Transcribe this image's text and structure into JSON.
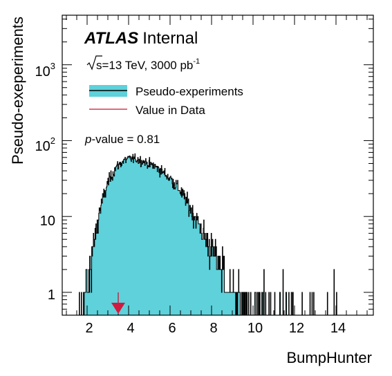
{
  "chart_data": {
    "type": "histogram",
    "title": "",
    "xlabel": "BumpHunter",
    "ylabel": "Pseudo-exeperiments",
    "xlim": [
      0.8,
      15.8
    ],
    "ylim": [
      0.5,
      4500
    ],
    "log_y": true,
    "x_ticks": [
      2,
      4,
      6,
      8,
      10,
      12,
      14
    ],
    "x_tick_labels": [
      "2",
      "4",
      "6",
      "8",
      "10",
      "12",
      "14"
    ],
    "y_ticks": [
      1,
      10,
      100,
      1000
    ],
    "y_tick_labels": [
      {
        "base": "1",
        "exp": ""
      },
      {
        "base": "10",
        "exp": ""
      },
      {
        "base": "10",
        "exp": "2"
      },
      {
        "base": "10",
        "exp": "3"
      }
    ],
    "annotations": {
      "experiment": "ATLAS",
      "status": "Internal",
      "sqrt_s": "s",
      "energy_lumi": "=13 TeV, 3000 pb",
      "lumi_exp": "-1",
      "p_label": "p",
      "p_rest": "-value = 0.81"
    },
    "legend": {
      "placement": "top-left",
      "entries": [
        {
          "label": "Pseudo-experiments",
          "style": "filled-histogram"
        },
        {
          "label": "Value in Data",
          "style": "line"
        }
      ]
    },
    "data_value": 3.5,
    "envelope_x": [
      1.6,
      2.0,
      2.3,
      2.6,
      3.0,
      3.4,
      3.8,
      4.0,
      4.4,
      4.8,
      5.2,
      5.6,
      6.0,
      6.4,
      6.8,
      7.2,
      7.6,
      8.0,
      8.4,
      8.8,
      9.2,
      9.6,
      10.0,
      10.5,
      11.0,
      12.0,
      13.0,
      14.0,
      15.2
    ],
    "envelope_y": [
      0.8,
      1.5,
      4,
      12,
      28,
      45,
      55,
      58,
      57,
      52,
      47,
      40,
      32,
      24,
      16,
      10,
      6,
      3.8,
      2.5,
      1.7,
      1.2,
      0.9,
      0.65,
      0.45,
      0.3,
      0.18,
      0.1,
      0.06,
      0.04
    ],
    "colors": {
      "fill": "#5ed1da",
      "line": "#000000",
      "data_line": "#cc1133",
      "marker": "#d11a3f"
    }
  }
}
